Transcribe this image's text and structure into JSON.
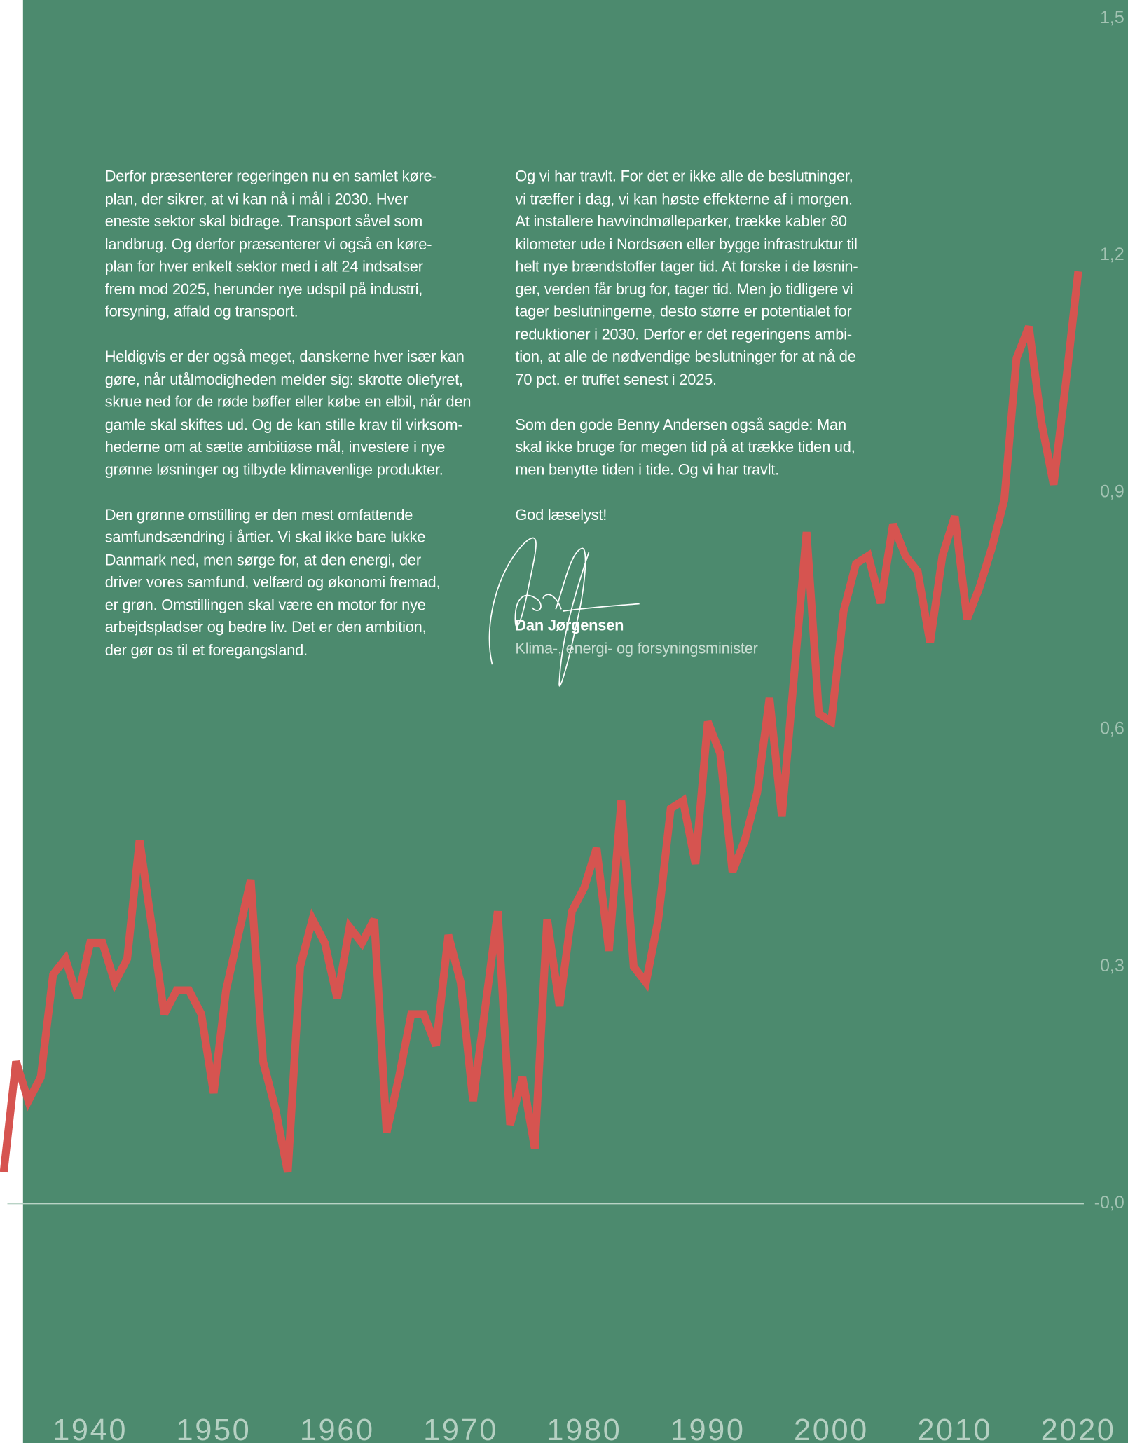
{
  "document": {
    "left_column": [
      [
        "Derfor præsenterer regeringen nu en samlet køre-",
        "plan, der sikrer, at vi kan nå i mål i 2030. Hver",
        "eneste sektor skal bidrage. Transport såvel som",
        "landbrug. Og derfor præsenterer vi også en køre-",
        "plan for hver enkelt sektor med i alt 24 indsatser",
        "frem mod 2025, herunder nye udspil på industri,",
        "forsyning, affald og transport."
      ],
      [
        "Heldigvis er der også meget, danskerne hver især kan",
        "gøre, når utålmodigheden melder sig: skrotte oliefyret,",
        "skrue ned for de røde bøffer eller købe en elbil, når den",
        "gamle skal skiftes ud. Og de kan stille krav til virksom-",
        "hederne om at sætte ambitiøse mål, investere i nye",
        "grønne løsninger og tilbyde klimavenlige produkter."
      ],
      [
        "Den grønne omstilling er den mest omfattende",
        "samfundsændring i årtier. Vi skal ikke bare lukke",
        "Danmark ned, men sørge for, at den energi, der",
        "driver vores samfund, velfærd og økonomi fremad,",
        "er grøn. Omstillingen skal være en motor for nye",
        "arbejdspladser og bedre liv. Det er den ambition,",
        "der gør os til et foregangsland."
      ]
    ],
    "right_column": [
      [
        "Og vi har travlt. For det er ikke alle de beslutninger,",
        "vi træffer i dag, vi kan høste effekterne af i morgen.",
        "At installere havvindmølleparker, trække kabler 80",
        "kilometer ude i Nordsøen eller bygge infrastruktur til",
        "helt nye brændstoffer tager tid. At forske i de løsnin-",
        "ger, verden får brug for, tager tid. Men jo tidligere vi",
        "tager beslutningerne, desto større er potentialet for",
        "reduktioner i 2030. Derfor er det regeringens ambi-",
        "tion, at alle de nødvendige beslutninger for at nå de",
        "70 pct. er truffet senest i 2025."
      ],
      [
        "Som den gode Benny Andersen også sagde: Man",
        "skal ikke bruge for megen tid på at trække tiden ud,",
        "men benytte tiden i tide. Og vi har travlt."
      ],
      [
        "God læselyst!"
      ]
    ],
    "signature_name": "Dan Jørgensen",
    "signature_title": "Klima-, energi- og forsyningsminister"
  },
  "chart_data": {
    "type": "line",
    "x": [
      1933,
      1934,
      1935,
      1936,
      1937,
      1938,
      1939,
      1940,
      1941,
      1942,
      1943,
      1944,
      1945,
      1946,
      1947,
      1948,
      1949,
      1950,
      1951,
      1952,
      1953,
      1954,
      1955,
      1956,
      1957,
      1958,
      1959,
      1960,
      1961,
      1962,
      1963,
      1964,
      1965,
      1966,
      1967,
      1968,
      1969,
      1970,
      1971,
      1972,
      1973,
      1974,
      1975,
      1976,
      1977,
      1978,
      1979,
      1980,
      1981,
      1982,
      1983,
      1984,
      1985,
      1986,
      1987,
      1988,
      1989,
      1990,
      1991,
      1992,
      1993,
      1994,
      1995,
      1996,
      1997,
      1998,
      1999,
      2000,
      2001,
      2002,
      2003,
      2004,
      2005,
      2006,
      2007,
      2008,
      2009,
      2010,
      2011,
      2012,
      2013,
      2014,
      2015,
      2016,
      2017,
      2018,
      2019,
      2020
    ],
    "values": [
      0.04,
      0.18,
      0.13,
      0.16,
      0.29,
      0.31,
      0.26,
      0.33,
      0.33,
      0.28,
      0.31,
      0.46,
      0.35,
      0.24,
      0.27,
      0.27,
      0.24,
      0.14,
      0.27,
      0.34,
      0.41,
      0.18,
      0.12,
      0.04,
      0.3,
      0.36,
      0.33,
      0.26,
      0.35,
      0.33,
      0.36,
      0.09,
      0.16,
      0.24,
      0.24,
      0.2,
      0.34,
      0.28,
      0.13,
      0.25,
      0.37,
      0.1,
      0.16,
      0.07,
      0.36,
      0.25,
      0.37,
      0.4,
      0.45,
      0.32,
      0.51,
      0.3,
      0.28,
      0.36,
      0.5,
      0.51,
      0.43,
      0.61,
      0.57,
      0.42,
      0.46,
      0.52,
      0.64,
      0.49,
      0.67,
      0.85,
      0.62,
      0.61,
      0.75,
      0.81,
      0.82,
      0.76,
      0.86,
      0.82,
      0.8,
      0.71,
      0.82,
      0.87,
      0.74,
      0.78,
      0.83,
      0.89,
      1.07,
      1.11,
      0.99,
      0.91,
      1.04,
      1.18
    ],
    "color": "#d65450",
    "xlim": [
      1933,
      2020
    ],
    "xticks": [
      1940,
      1950,
      1960,
      1970,
      1980,
      1990,
      2000,
      2010,
      2020
    ],
    "ylim": [
      -0.3,
      1.5
    ],
    "yticks": [
      {
        "value": 1.5,
        "label": "1,5"
      },
      {
        "value": 1.2,
        "label": "1,2"
      },
      {
        "value": 0.9,
        "label": "0,9"
      },
      {
        "value": 0.6,
        "label": "0,6"
      },
      {
        "value": 0.3,
        "label": "0,3"
      },
      {
        "value": 0,
        "label": "-0,0"
      }
    ]
  }
}
